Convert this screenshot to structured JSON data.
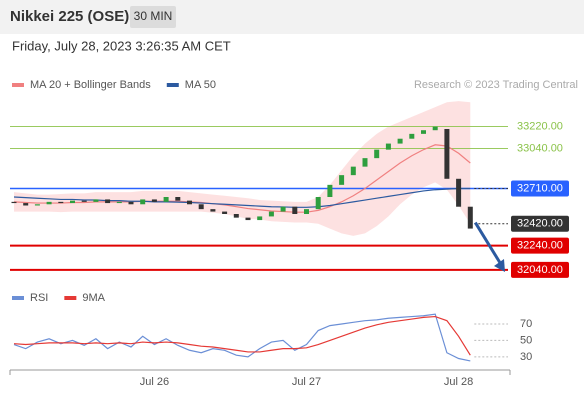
{
  "header": {
    "title": "Nikkei 225 (OSE)",
    "interval": "30 MIN"
  },
  "timestamp": "Friday, July 28, 2023 3:26:35 AM CET",
  "chart_data": [
    {
      "type": "candlestick",
      "credit": "Research © 2023 Trading Central",
      "up_color": "#2e9e3e",
      "down_color": "#333333",
      "open": [
        32600,
        32590,
        32570,
        32580,
        32600,
        32590,
        32610,
        32600,
        32620,
        32590,
        32600,
        32580,
        32620,
        32600,
        32640,
        32610,
        32580,
        32540,
        32520,
        32500,
        32470,
        32450,
        32480,
        32520,
        32560,
        32500,
        32540,
        32640,
        32740,
        32820,
        32890,
        32960,
        33030,
        33080,
        33120,
        33160,
        33190,
        33200,
        32790,
        32560
      ],
      "close": [
        32590,
        32570,
        32580,
        32600,
        32590,
        32610,
        32600,
        32620,
        32590,
        32600,
        32580,
        32620,
        32600,
        32640,
        32610,
        32580,
        32540,
        32520,
        32500,
        32470,
        32450,
        32480,
        32520,
        32560,
        32500,
        32540,
        32640,
        32740,
        32820,
        32890,
        32960,
        33030,
        33080,
        33120,
        33160,
        33190,
        33220,
        32790,
        32560,
        32380
      ],
      "overlays": [
        {
          "name": "MA 20 + Bollinger Bands",
          "color": "#f08080",
          "band_color": "#fdd9d9",
          "values": [
            32600,
            32595,
            32590,
            32590,
            32590,
            32595,
            32595,
            32600,
            32600,
            32600,
            32600,
            32605,
            32605,
            32605,
            32605,
            32600,
            32595,
            32585,
            32575,
            32560,
            32545,
            32535,
            32525,
            32520,
            32515,
            32515,
            32530,
            32560,
            32600,
            32650,
            32710,
            32780,
            32850,
            32920,
            32980,
            33030,
            33070,
            33060,
            33000,
            32920
          ],
          "upper": [
            32680,
            32670,
            32660,
            32660,
            32665,
            32670,
            32670,
            32680,
            32680,
            32680,
            32680,
            32690,
            32690,
            32690,
            32690,
            32680,
            32670,
            32660,
            32650,
            32640,
            32630,
            32615,
            32610,
            32605,
            32600,
            32600,
            32640,
            32740,
            32860,
            32980,
            33080,
            33160,
            33220,
            33260,
            33300,
            33340,
            33380,
            33420,
            33430,
            33420
          ],
          "lower": [
            32520,
            32520,
            32520,
            32520,
            32515,
            32520,
            32520,
            32520,
            32520,
            32520,
            32520,
            32520,
            32520,
            32520,
            32520,
            32520,
            32520,
            32510,
            32500,
            32480,
            32460,
            32455,
            32440,
            32435,
            32430,
            32430,
            32420,
            32380,
            32340,
            32320,
            32340,
            32400,
            32480,
            32580,
            32660,
            32720,
            32760,
            32700,
            32570,
            32420
          ]
        },
        {
          "name": "MA 50",
          "color": "#2c5aa0",
          "values": [
            32640,
            32635,
            32630,
            32625,
            32620,
            32620,
            32615,
            32615,
            32610,
            32610,
            32605,
            32605,
            32600,
            32600,
            32598,
            32595,
            32590,
            32585,
            32580,
            32575,
            32570,
            32565,
            32560,
            32558,
            32555,
            32555,
            32560,
            32570,
            32585,
            32600,
            32615,
            32630,
            32645,
            32660,
            32675,
            32690,
            32700,
            32705,
            32710,
            32710
          ]
        }
      ],
      "levels": [
        {
          "value": 33220,
          "label": "33220.00",
          "color": "#8bc34a",
          "style": "solid",
          "box": false
        },
        {
          "value": 33040,
          "label": "33040.00",
          "color": "#8bc34a",
          "style": "solid",
          "box": false
        },
        {
          "value": 32710,
          "label": "32710.00",
          "color": "#2962ff",
          "style": "solid",
          "box": true
        },
        {
          "value": 32420,
          "label": "32420.00",
          "color": "#333333",
          "style": "dotted",
          "box": true
        },
        {
          "value": 32240,
          "label": "32240.00",
          "color": "#e00000",
          "style": "thick",
          "box": true
        },
        {
          "value": 32040,
          "label": "32040.00",
          "color": "#e00000",
          "style": "thick",
          "box": true
        }
      ],
      "ylim": [
        31940,
        33480
      ]
    },
    {
      "type": "line",
      "categories": [
        null,
        null,
        null,
        null,
        null,
        null,
        null,
        null,
        null,
        null,
        null,
        null,
        "Jul 26",
        null,
        null,
        null,
        null,
        null,
        null,
        null,
        null,
        null,
        null,
        null,
        null,
        "Jul 27",
        null,
        null,
        null,
        null,
        null,
        null,
        null,
        null,
        null,
        null,
        null,
        null,
        "Jul 28",
        null
      ],
      "series": [
        {
          "name": "RSI",
          "color": "#6b8fd6",
          "values": [
            45,
            40,
            48,
            52,
            46,
            50,
            44,
            52,
            40,
            48,
            42,
            55,
            45,
            52,
            44,
            38,
            35,
            40,
            38,
            32,
            30,
            40,
            48,
            50,
            38,
            45,
            62,
            68,
            70,
            72,
            74,
            75,
            77,
            78,
            79,
            80,
            82,
            35,
            28,
            25
          ]
        },
        {
          "name": "9MA",
          "color": "#e53935",
          "values": [
            46,
            45,
            46,
            47,
            47,
            47,
            46,
            47,
            46,
            47,
            46,
            48,
            47,
            48,
            47,
            45,
            43,
            42,
            40,
            38,
            36,
            36,
            38,
            40,
            40,
            41,
            45,
            50,
            55,
            60,
            65,
            69,
            72,
            74,
            76,
            78,
            79,
            74,
            55,
            32
          ]
        }
      ],
      "ylim": [
        14,
        87
      ],
      "yticks": [
        30,
        50,
        70
      ]
    }
  ]
}
